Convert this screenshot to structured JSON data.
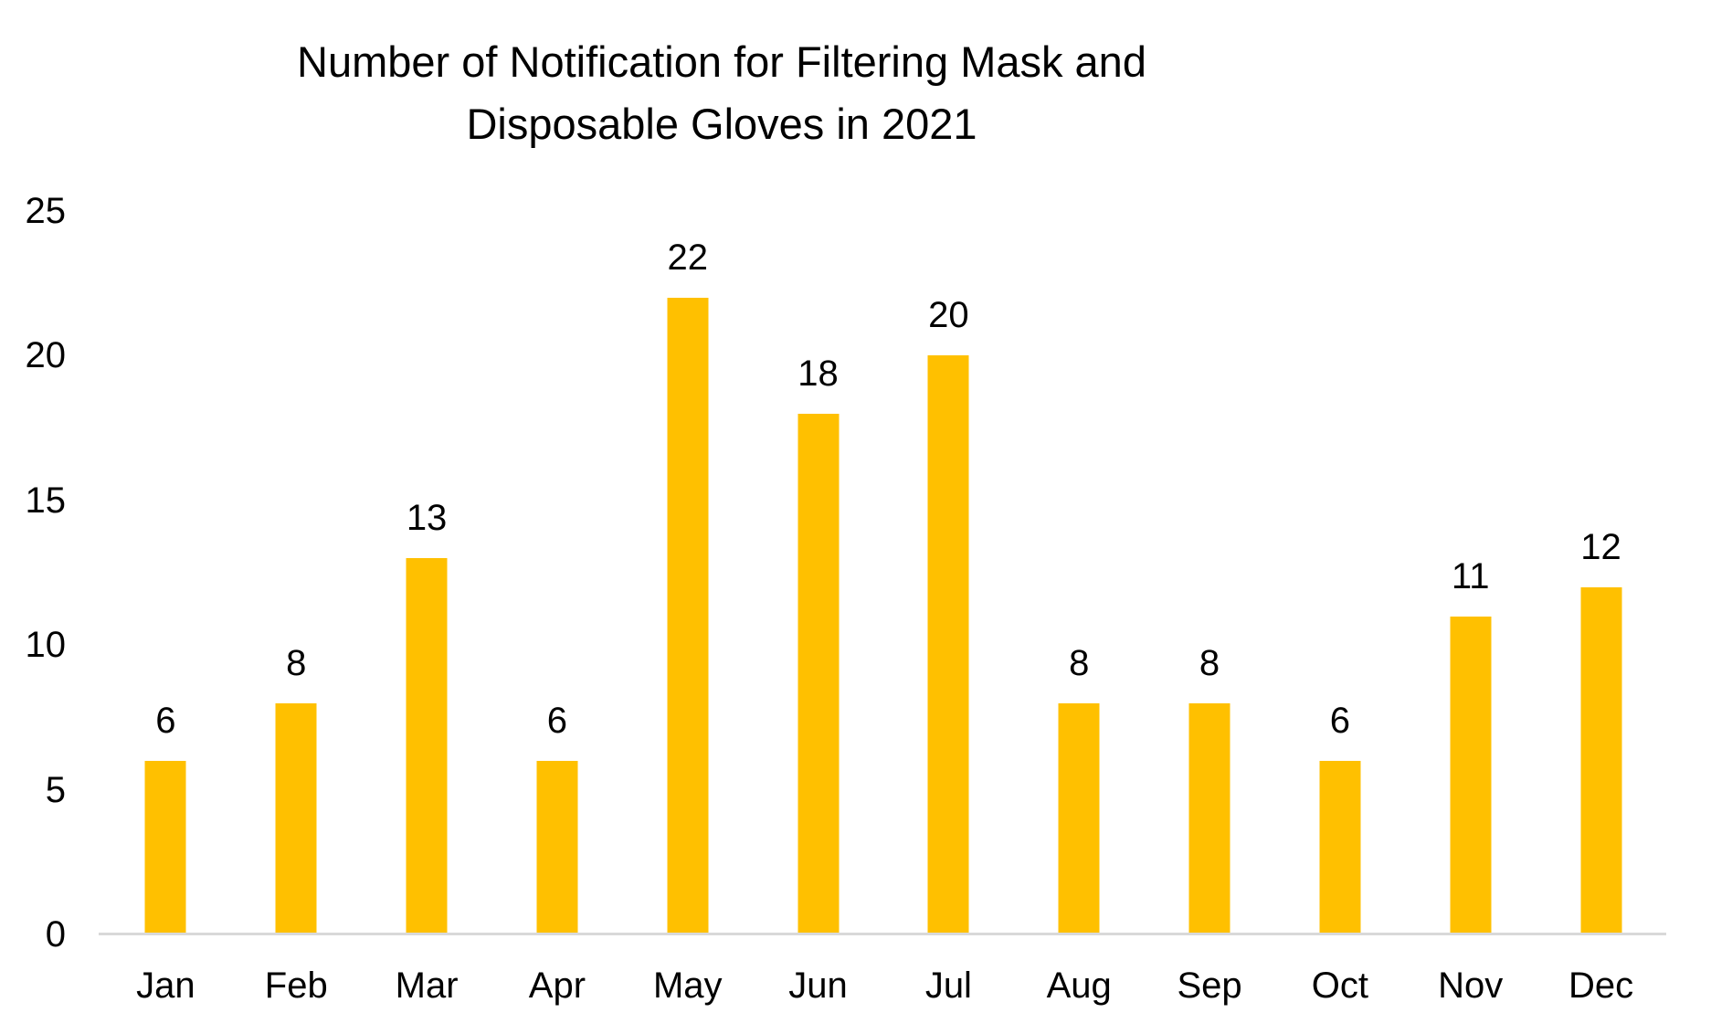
{
  "chart_data": {
    "type": "bar",
    "title": "Number of Notification for Filtering Mask and Disposable Gloves in 2021",
    "title_line1": "Number of Notification for Filtering Mask and",
    "title_line2": "Disposable Gloves in 2021",
    "categories": [
      "Jan",
      "Feb",
      "Mar",
      "Apr",
      "May",
      "Jun",
      "Jul",
      "Aug",
      "Sep",
      "Oct",
      "Nov",
      "Dec"
    ],
    "values": [
      6,
      8,
      13,
      6,
      22,
      18,
      20,
      8,
      8,
      6,
      11,
      12
    ],
    "data_labels": [
      6,
      8,
      13,
      6,
      22,
      18,
      20,
      8,
      8,
      6,
      11,
      12
    ],
    "xlabel": "",
    "ylabel": "",
    "ylim": [
      0,
      25
    ],
    "yticks": [
      0,
      5,
      10,
      15,
      20,
      25
    ],
    "grid": false,
    "legend": false,
    "colors": {
      "bar": "#FFC000",
      "axis_line": "#D9D9D9",
      "text": "#000000",
      "background": "#FFFFFF"
    }
  }
}
